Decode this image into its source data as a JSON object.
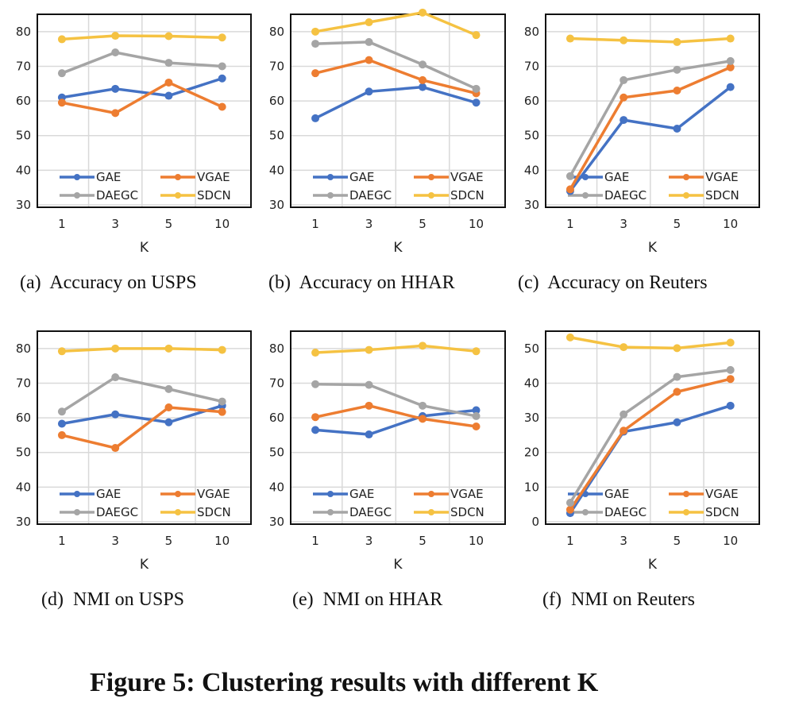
{
  "figure_title": "Figure 5: Clustering results with different K",
  "series_colors": {
    "GAE": "#4472C4",
    "VGAE": "#ED7D31",
    "DAEGC": "#A5A5A5",
    "SDCN": "#F5C242"
  },
  "chart_data": [
    {
      "type": "line",
      "caption": "(a)  Accuracy on USPS",
      "xlabel": "K",
      "categories": [
        "1",
        "3",
        "5",
        "10"
      ],
      "ylim": [
        30,
        85
      ],
      "yticks": [
        30,
        40,
        50,
        60,
        70,
        80
      ],
      "grid": true,
      "legend": "bottom",
      "series": [
        {
          "name": "GAE",
          "values": [
            61,
            63.5,
            61.5,
            66.5
          ]
        },
        {
          "name": "VGAE",
          "values": [
            59.5,
            56.5,
            65.3,
            58.3
          ]
        },
        {
          "name": "DAEGC",
          "values": [
            68,
            74,
            71,
            70
          ]
        },
        {
          "name": "SDCN",
          "values": [
            77.8,
            78.8,
            78.7,
            78.3
          ]
        }
      ]
    },
    {
      "type": "line",
      "caption": "(b)  Accuracy on HHAR",
      "xlabel": "K",
      "categories": [
        "1",
        "3",
        "5",
        "10"
      ],
      "ylim": [
        30,
        85
      ],
      "yticks": [
        30,
        40,
        50,
        60,
        70,
        80
      ],
      "grid": true,
      "legend": "bottom",
      "series": [
        {
          "name": "GAE",
          "values": [
            55,
            62.7,
            64,
            59.5
          ]
        },
        {
          "name": "VGAE",
          "values": [
            68,
            71.8,
            66,
            62.2
          ]
        },
        {
          "name": "DAEGC",
          "values": [
            76.5,
            77,
            70.5,
            63.5
          ]
        },
        {
          "name": "SDCN",
          "values": [
            80,
            82.7,
            85.5,
            79
          ]
        }
      ]
    },
    {
      "type": "line",
      "caption": "(c)  Accuracy on Reuters",
      "xlabel": "K",
      "categories": [
        "1",
        "3",
        "5",
        "10"
      ],
      "ylim": [
        30,
        85
      ],
      "yticks": [
        30,
        40,
        50,
        60,
        70,
        80
      ],
      "grid": true,
      "legend": "bottom",
      "series": [
        {
          "name": "GAE",
          "values": [
            34,
            54.5,
            52,
            64
          ]
        },
        {
          "name": "VGAE",
          "values": [
            34.5,
            61,
            63,
            69.7
          ]
        },
        {
          "name": "DAEGC",
          "values": [
            38.3,
            66,
            69,
            71.5
          ]
        },
        {
          "name": "SDCN",
          "values": [
            78,
            77.5,
            77,
            78
          ]
        }
      ]
    },
    {
      "type": "line",
      "caption": "(d)  NMI on USPS",
      "xlabel": "K",
      "categories": [
        "1",
        "3",
        "5",
        "10"
      ],
      "ylim": [
        30,
        85
      ],
      "yticks": [
        30,
        40,
        50,
        60,
        70,
        80
      ],
      "grid": true,
      "legend": "bottom",
      "series": [
        {
          "name": "GAE",
          "values": [
            58.3,
            61,
            58.7,
            63.5
          ]
        },
        {
          "name": "VGAE",
          "values": [
            55,
            51.3,
            63,
            61.7
          ]
        },
        {
          "name": "DAEGC",
          "values": [
            61.8,
            71.7,
            68.3,
            64.7
          ]
        },
        {
          "name": "SDCN",
          "values": [
            79.2,
            80,
            80,
            79.6
          ]
        }
      ]
    },
    {
      "type": "line",
      "caption": "(e)  NMI on HHAR",
      "xlabel": "K",
      "categories": [
        "1",
        "3",
        "5",
        "10"
      ],
      "ylim": [
        30,
        85
      ],
      "yticks": [
        30,
        40,
        50,
        60,
        70,
        80
      ],
      "grid": true,
      "legend": "bottom",
      "series": [
        {
          "name": "GAE",
          "values": [
            56.5,
            55.2,
            60.5,
            62.2
          ]
        },
        {
          "name": "VGAE",
          "values": [
            60.2,
            63.5,
            59.7,
            57.5
          ]
        },
        {
          "name": "DAEGC",
          "values": [
            69.7,
            69.5,
            63.5,
            60.5
          ]
        },
        {
          "name": "SDCN",
          "values": [
            78.8,
            79.6,
            80.8,
            79.2
          ]
        }
      ]
    },
    {
      "type": "line",
      "caption": "(f)  NMI on Reuters",
      "xlabel": "K",
      "categories": [
        "1",
        "3",
        "5",
        "10"
      ],
      "ylim": [
        0,
        55
      ],
      "yticks": [
        0,
        10,
        20,
        30,
        40,
        50
      ],
      "grid": true,
      "legend": "bottom",
      "series": [
        {
          "name": "GAE",
          "values": [
            2.5,
            26,
            28.7,
            33.5
          ]
        },
        {
          "name": "VGAE",
          "values": [
            3.5,
            26.3,
            37.5,
            41.2
          ]
        },
        {
          "name": "DAEGC",
          "values": [
            5.5,
            31,
            41.8,
            43.8
          ]
        },
        {
          "name": "SDCN",
          "values": [
            53.2,
            50.4,
            50.1,
            51.7
          ]
        }
      ]
    }
  ]
}
